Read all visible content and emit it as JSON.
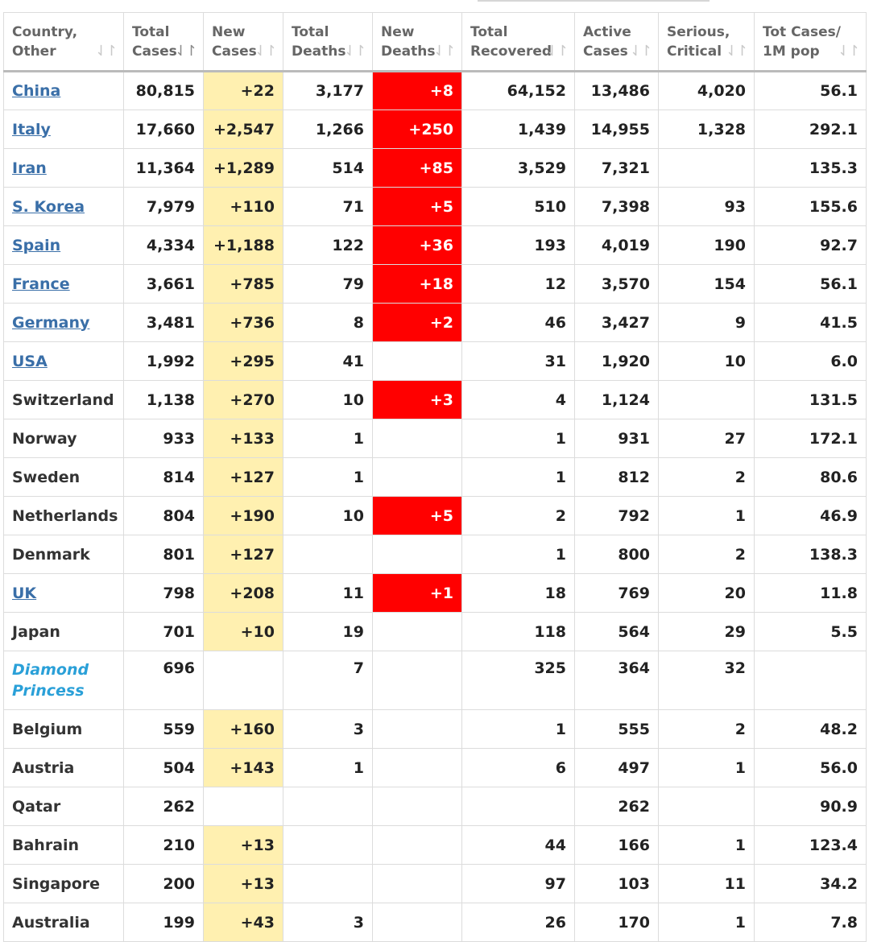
{
  "headers": [
    {
      "line1": "Country,",
      "line2": "Other",
      "sort": "⇃↾"
    },
    {
      "line1": "Total",
      "line2": "Cases",
      "sort": "⇃↾"
    },
    {
      "line1": "New",
      "line2": "Cases",
      "sort": "⇃↾"
    },
    {
      "line1": "Total",
      "line2": "Deaths",
      "sort": "⇃↾"
    },
    {
      "line1": "New",
      "line2": "Deaths",
      "sort": "⇃↾"
    },
    {
      "line1": "Total",
      "line2": "Recovered",
      "sort": "⇃↾"
    },
    {
      "line1": "Active",
      "line2": "Cases",
      "sort": "⇃↾"
    },
    {
      "line1": "Serious,",
      "line2": "Critical",
      "sort": "⇃↾"
    },
    {
      "line1": "Tot Cases/",
      "line2": "1M pop",
      "sort": "⇃↾"
    }
  ],
  "colors": {
    "new_cases_bg": "#fff0b0",
    "new_deaths_bg": "#ff0000",
    "link": "#3a6fa8",
    "special": "#2aa0d8"
  },
  "rows": [
    {
      "country": "China",
      "style": "link",
      "total_cases": "80,815",
      "new_cases": "+22",
      "total_deaths": "3,177",
      "new_deaths": "+8",
      "total_recovered": "64,152",
      "active_cases": "13,486",
      "serious_critical": "4,020",
      "per_million": "56.1"
    },
    {
      "country": "Italy",
      "style": "link",
      "total_cases": "17,660",
      "new_cases": "+2,547",
      "total_deaths": "1,266",
      "new_deaths": "+250",
      "total_recovered": "1,439",
      "active_cases": "14,955",
      "serious_critical": "1,328",
      "per_million": "292.1"
    },
    {
      "country": "Iran",
      "style": "link",
      "total_cases": "11,364",
      "new_cases": "+1,289",
      "total_deaths": "514",
      "new_deaths": "+85",
      "total_recovered": "3,529",
      "active_cases": "7,321",
      "serious_critical": "",
      "per_million": "135.3"
    },
    {
      "country": "S. Korea",
      "style": "link",
      "total_cases": "7,979",
      "new_cases": "+110",
      "total_deaths": "71",
      "new_deaths": "+5",
      "total_recovered": "510",
      "active_cases": "7,398",
      "serious_critical": "93",
      "per_million": "155.6"
    },
    {
      "country": "Spain",
      "style": "link",
      "total_cases": "4,334",
      "new_cases": "+1,188",
      "total_deaths": "122",
      "new_deaths": "+36",
      "total_recovered": "193",
      "active_cases": "4,019",
      "serious_critical": "190",
      "per_million": "92.7"
    },
    {
      "country": "France",
      "style": "link",
      "total_cases": "3,661",
      "new_cases": "+785",
      "total_deaths": "79",
      "new_deaths": "+18",
      "total_recovered": "12",
      "active_cases": "3,570",
      "serious_critical": "154",
      "per_million": "56.1"
    },
    {
      "country": "Germany",
      "style": "link",
      "total_cases": "3,481",
      "new_cases": "+736",
      "total_deaths": "8",
      "new_deaths": "+2",
      "total_recovered": "46",
      "active_cases": "3,427",
      "serious_critical": "9",
      "per_million": "41.5"
    },
    {
      "country": "USA",
      "style": "link",
      "total_cases": "1,992",
      "new_cases": "+295",
      "total_deaths": "41",
      "new_deaths": "",
      "total_recovered": "31",
      "active_cases": "1,920",
      "serious_critical": "10",
      "per_million": "6.0"
    },
    {
      "country": "Switzerland",
      "style": "plain",
      "total_cases": "1,138",
      "new_cases": "+270",
      "total_deaths": "10",
      "new_deaths": "+3",
      "total_recovered": "4",
      "active_cases": "1,124",
      "serious_critical": "",
      "per_million": "131.5"
    },
    {
      "country": "Norway",
      "style": "plain",
      "total_cases": "933",
      "new_cases": "+133",
      "total_deaths": "1",
      "new_deaths": "",
      "total_recovered": "1",
      "active_cases": "931",
      "serious_critical": "27",
      "per_million": "172.1"
    },
    {
      "country": "Sweden",
      "style": "plain",
      "total_cases": "814",
      "new_cases": "+127",
      "total_deaths": "1",
      "new_deaths": "",
      "total_recovered": "1",
      "active_cases": "812",
      "serious_critical": "2",
      "per_million": "80.6"
    },
    {
      "country": "Netherlands",
      "style": "plain",
      "total_cases": "804",
      "new_cases": "+190",
      "total_deaths": "10",
      "new_deaths": "+5",
      "total_recovered": "2",
      "active_cases": "792",
      "serious_critical": "1",
      "per_million": "46.9"
    },
    {
      "country": "Denmark",
      "style": "plain",
      "total_cases": "801",
      "new_cases": "+127",
      "total_deaths": "",
      "new_deaths": "",
      "total_recovered": "1",
      "active_cases": "800",
      "serious_critical": "2",
      "per_million": "138.3"
    },
    {
      "country": "UK",
      "style": "link",
      "total_cases": "798",
      "new_cases": "+208",
      "total_deaths": "11",
      "new_deaths": "+1",
      "total_recovered": "18",
      "active_cases": "769",
      "serious_critical": "20",
      "per_million": "11.8"
    },
    {
      "country": "Japan",
      "style": "plain",
      "total_cases": "701",
      "new_cases": "+10",
      "total_deaths": "19",
      "new_deaths": "",
      "total_recovered": "118",
      "active_cases": "564",
      "serious_critical": "29",
      "per_million": "5.5"
    },
    {
      "country": "Diamond Princess",
      "style": "special",
      "total_cases": "696",
      "new_cases": "",
      "total_deaths": "7",
      "new_deaths": "",
      "total_recovered": "325",
      "active_cases": "364",
      "serious_critical": "32",
      "per_million": ""
    },
    {
      "country": "Belgium",
      "style": "plain",
      "total_cases": "559",
      "new_cases": "+160",
      "total_deaths": "3",
      "new_deaths": "",
      "total_recovered": "1",
      "active_cases": "555",
      "serious_critical": "2",
      "per_million": "48.2"
    },
    {
      "country": "Austria",
      "style": "plain",
      "total_cases": "504",
      "new_cases": "+143",
      "total_deaths": "1",
      "new_deaths": "",
      "total_recovered": "6",
      "active_cases": "497",
      "serious_critical": "1",
      "per_million": "56.0"
    },
    {
      "country": "Qatar",
      "style": "plain",
      "total_cases": "262",
      "new_cases": "",
      "total_deaths": "",
      "new_deaths": "",
      "total_recovered": "",
      "active_cases": "262",
      "serious_critical": "",
      "per_million": "90.9"
    },
    {
      "country": "Bahrain",
      "style": "plain",
      "total_cases": "210",
      "new_cases": "+13",
      "total_deaths": "",
      "new_deaths": "",
      "total_recovered": "44",
      "active_cases": "166",
      "serious_critical": "1",
      "per_million": "123.4"
    },
    {
      "country": "Singapore",
      "style": "plain",
      "total_cases": "200",
      "new_cases": "+13",
      "total_deaths": "",
      "new_deaths": "",
      "total_recovered": "97",
      "active_cases": "103",
      "serious_critical": "11",
      "per_million": "34.2"
    },
    {
      "country": "Australia",
      "style": "plain",
      "total_cases": "199",
      "new_cases": "+43",
      "total_deaths": "3",
      "new_deaths": "",
      "total_recovered": "26",
      "active_cases": "170",
      "serious_critical": "1",
      "per_million": "7.8"
    }
  ]
}
